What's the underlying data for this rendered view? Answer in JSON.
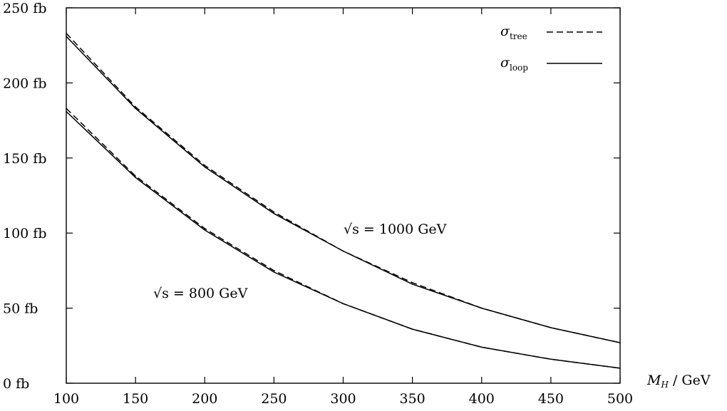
{
  "chart_data": {
    "type": "line",
    "title": "",
    "xlabel": "M_H / GeV",
    "ylabel": "",
    "xlim": [
      100,
      500
    ],
    "ylim": [
      0,
      250
    ],
    "x_ticks": [
      100,
      150,
      200,
      250,
      300,
      350,
      400,
      450,
      500
    ],
    "x_tick_labels": [
      "100",
      "150",
      "200",
      "250",
      "300",
      "350",
      "400",
      "450",
      "500"
    ],
    "y_ticks": [
      0,
      50,
      100,
      150,
      200,
      250
    ],
    "y_tick_labels": [
      "0 fb",
      "50 fb",
      "100 fb",
      "150 fb",
      "200 fb",
      "250 fb"
    ],
    "grid": false,
    "legend_position": "top-right",
    "legend": [
      {
        "label_base": "σ",
        "label_sub": "tree",
        "style": "dashed"
      },
      {
        "label_base": "σ",
        "label_sub": "loop",
        "style": "solid"
      }
    ],
    "annotations": [
      {
        "text": "√s = 1000 GeV",
        "curve": "1000"
      },
      {
        "text": "√s = 800 GeV",
        "curve": "800"
      }
    ],
    "x": [
      100,
      150,
      200,
      250,
      300,
      350,
      400,
      450,
      500
    ],
    "series": [
      {
        "energy": "1000",
        "kind": "tree",
        "style": "dashed",
        "values": [
          233,
          184,
          145,
          114,
          88,
          67,
          50,
          37,
          27
        ]
      },
      {
        "energy": "1000",
        "kind": "loop",
        "style": "solid",
        "values": [
          231,
          183,
          144,
          113,
          88,
          66,
          50,
          37,
          27
        ]
      },
      {
        "energy": "800",
        "kind": "tree",
        "style": "dashed",
        "values": [
          183,
          138,
          103,
          75,
          53,
          36,
          24,
          16,
          10
        ]
      },
      {
        "energy": "800",
        "kind": "loop",
        "style": "solid",
        "values": [
          181,
          137,
          102,
          74,
          53,
          36,
          24,
          16,
          10
        ]
      }
    ]
  }
}
